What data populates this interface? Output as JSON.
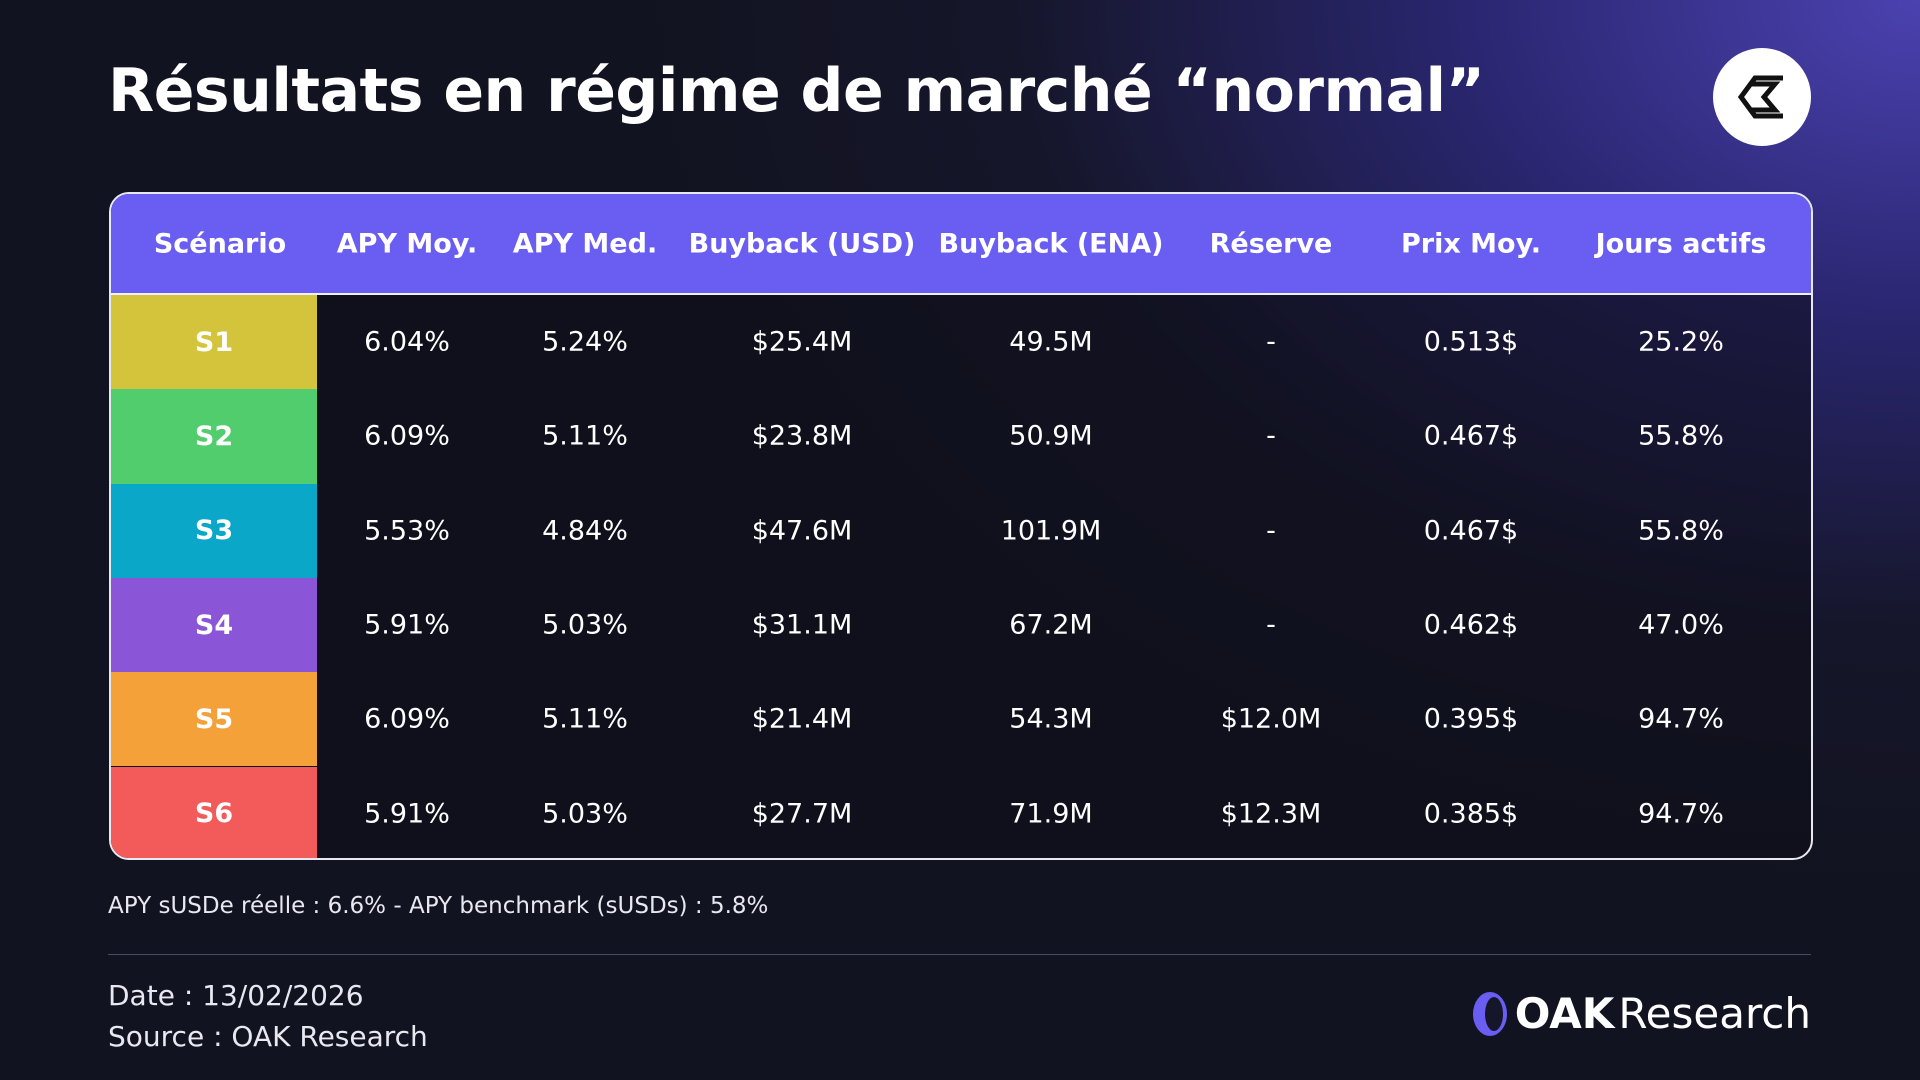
{
  "header": {
    "title": "Résultats en régime de marché “normal”"
  },
  "table": {
    "columns": [
      "Scénario",
      "APY Moy.",
      "APY Med.",
      "Buyback (USD)",
      "Buyback (ENA)",
      "Réserve",
      "Prix Moy.",
      "Jours actifs"
    ],
    "rows": [
      [
        "S1",
        "6.04%",
        "5.24%",
        "$25.4M",
        "49.5M",
        "-",
        "0.513$",
        "25.2%"
      ],
      [
        "S2",
        "6.09%",
        "5.11%",
        "$23.8M",
        "50.9M",
        "-",
        "0.467$",
        "55.8%"
      ],
      [
        "S3",
        "5.53%",
        "4.84%",
        "$47.6M",
        "101.9M",
        "-",
        "0.467$",
        "55.8%"
      ],
      [
        "S4",
        "5.91%",
        "5.03%",
        "$31.1M",
        "67.2M",
        "-",
        "0.462$",
        "47.0%"
      ],
      [
        "S5",
        "6.09%",
        "5.11%",
        "$21.4M",
        "54.3M",
        "$12.0M",
        "0.395$",
        "94.7%"
      ],
      [
        "S6",
        "5.91%",
        "5.03%",
        "$27.7M",
        "71.9M",
        "$12.3M",
        "0.385$",
        "94.7%"
      ]
    ]
  },
  "footnote": "APY sUSDe réelle : 6.6% - APY benchmark (sUSDs) : 5.8%",
  "footer": {
    "date": "Date : 13/02/2026",
    "source": "Source : OAK Research",
    "brand": [
      "OAK",
      "Research"
    ]
  }
}
